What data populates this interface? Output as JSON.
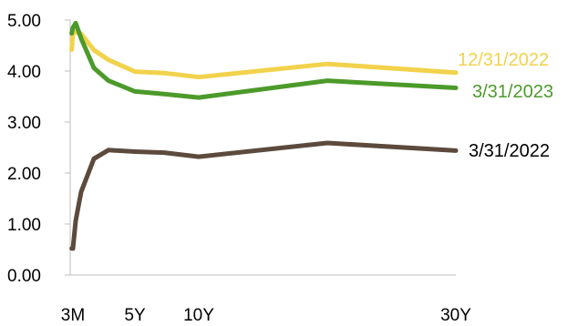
{
  "chart_data": {
    "type": "line",
    "title": "",
    "xlabel": "",
    "ylabel": "",
    "ylim": [
      0,
      5
    ],
    "yticks": [
      "0.00",
      "1.00",
      "2.00",
      "3.00",
      "4.00",
      "5.00"
    ],
    "xticks": [
      {
        "label": "3M",
        "t": 0.25
      },
      {
        "label": "5Y",
        "t": 5
      },
      {
        "label": "10Y",
        "t": 10
      },
      {
        "label": "30Y",
        "t": 30
      }
    ],
    "grid": false,
    "series": [
      {
        "name": "12/31/2022",
        "color": "#F2D24B",
        "points": [
          [
            0.08,
            4.42
          ],
          [
            0.25,
            4.75
          ],
          [
            0.5,
            4.76
          ],
          [
            1,
            4.73
          ],
          [
            2,
            4.41
          ],
          [
            3,
            4.22
          ],
          [
            5,
            3.99
          ],
          [
            7,
            3.96
          ],
          [
            10,
            3.88
          ],
          [
            20,
            4.14
          ],
          [
            30,
            3.97
          ]
        ]
      },
      {
        "name": "3/31/2023",
        "color": "#4C9A2A",
        "points": [
          [
            0.08,
            4.74
          ],
          [
            0.25,
            4.85
          ],
          [
            0.5,
            4.94
          ],
          [
            1,
            4.64
          ],
          [
            2,
            4.06
          ],
          [
            3,
            3.81
          ],
          [
            5,
            3.6
          ],
          [
            7,
            3.55
          ],
          [
            10,
            3.48
          ],
          [
            20,
            3.81
          ],
          [
            30,
            3.67
          ]
        ]
      },
      {
        "name": "3/31/2022",
        "color": "#5C4A3D",
        "points": [
          [
            0.08,
            0.52
          ],
          [
            0.25,
            0.52
          ],
          [
            0.5,
            1.06
          ],
          [
            1,
            1.63
          ],
          [
            2,
            2.28
          ],
          [
            3,
            2.45
          ],
          [
            5,
            2.42
          ],
          [
            7,
            2.4
          ],
          [
            10,
            2.32
          ],
          [
            20,
            2.59
          ],
          [
            30,
            2.44
          ]
        ]
      }
    ]
  }
}
